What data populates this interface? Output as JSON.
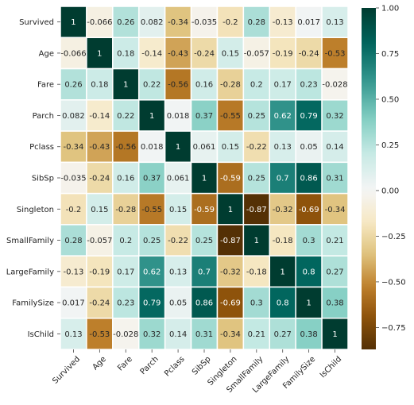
{
  "chart_data": {
    "type": "heatmap",
    "title": "",
    "labels": [
      "Survived",
      "Age",
      "Fare",
      "Parch",
      "Pclass",
      "SibSp",
      "Singleton",
      "SmallFamily",
      "LargeFamily",
      "FamilySize",
      "IsChild"
    ],
    "matrix": [
      [
        1,
        -0.066,
        0.26,
        0.082,
        -0.34,
        -0.035,
        -0.2,
        0.28,
        -0.13,
        0.017,
        0.13
      ],
      [
        -0.066,
        1,
        0.18,
        -0.14,
        -0.43,
        -0.24,
        0.15,
        -0.057,
        -0.19,
        -0.24,
        -0.53
      ],
      [
        0.26,
        0.18,
        1,
        0.22,
        -0.56,
        0.16,
        -0.28,
        0.2,
        0.17,
        0.23,
        -0.028
      ],
      [
        0.082,
        -0.14,
        0.22,
        1,
        0.018,
        0.37,
        -0.55,
        0.25,
        0.62,
        0.79,
        0.32
      ],
      [
        -0.34,
        -0.43,
        -0.56,
        0.018,
        1,
        0.061,
        0.15,
        -0.22,
        0.13,
        0.05,
        0.14
      ],
      [
        -0.035,
        -0.24,
        0.16,
        0.37,
        0.061,
        1,
        -0.59,
        0.25,
        0.7,
        0.86,
        0.31
      ],
      [
        -0.2,
        0.15,
        -0.28,
        -0.55,
        0.15,
        -0.59,
        1,
        -0.87,
        -0.32,
        -0.69,
        -0.34
      ],
      [
        0.28,
        -0.057,
        0.2,
        0.25,
        -0.22,
        0.25,
        -0.87,
        1,
        -0.18,
        0.3,
        0.21
      ],
      [
        -0.13,
        -0.19,
        0.17,
        0.62,
        0.13,
        0.7,
        -0.32,
        -0.18,
        1,
        0.8,
        0.27
      ],
      [
        0.017,
        -0.24,
        0.23,
        0.79,
        0.05,
        0.86,
        -0.69,
        0.3,
        0.8,
        1,
        0.38
      ],
      [
        0.13,
        -0.53,
        -0.028,
        0.32,
        0.14,
        0.31,
        -0.34,
        0.21,
        0.27,
        0.38,
        1
      ]
    ],
    "cell_labels": [
      [
        "1",
        "-0.066",
        "0.26",
        "0.082",
        "-0.34",
        "-0.035",
        "-0.2",
        "0.28",
        "-0.13",
        "0.017",
        "0.13"
      ],
      [
        "-0.066",
        "1",
        "0.18",
        "-0.14",
        "-0.43",
        "-0.24",
        "0.15",
        "-0.057",
        "-0.19",
        "-0.24",
        "-0.53"
      ],
      [
        "0.26",
        "0.18",
        "1",
        "0.22",
        "-0.56",
        "0.16",
        "-0.28",
        "0.2",
        "0.17",
        "0.23",
        "-0.028"
      ],
      [
        "0.082",
        "-0.14",
        "0.22",
        "1",
        "0.018",
        "0.37",
        "-0.55",
        "0.25",
        "0.62",
        "0.79",
        "0.32"
      ],
      [
        "-0.34",
        "-0.43",
        "-0.56",
        "0.018",
        "1",
        "0.061",
        "0.15",
        "-0.22",
        "0.13",
        "0.05",
        "0.14"
      ],
      [
        "-0.035",
        "-0.24",
        "0.16",
        "0.37",
        "0.061",
        "1",
        "-0.59",
        "0.25",
        "0.7",
        "0.86",
        "0.31"
      ],
      [
        "-0.2",
        "0.15",
        "-0.28",
        "-0.55",
        "0.15",
        "-0.59",
        "1",
        "-0.87",
        "-0.32",
        "-0.69",
        "-0.34"
      ],
      [
        "0.28",
        "-0.057",
        "0.2",
        "0.25",
        "-0.22",
        "0.25",
        "-0.87",
        "1",
        "-0.18",
        "0.3",
        "0.21"
      ],
      [
        "-0.13",
        "-0.19",
        "0.17",
        "0.62",
        "0.13",
        "0.7",
        "-0.32",
        "-0.18",
        "1",
        "0.8",
        "0.27"
      ],
      [
        "0.017",
        "-0.24",
        "0.23",
        "0.79",
        "0.05",
        "0.86",
        "-0.69",
        "0.3",
        "0.8",
        "1",
        "0.38"
      ],
      [
        "0.13",
        "-0.53",
        "-0.028",
        "0.32",
        "0.14",
        "0.31",
        "-0.34",
        "0.21",
        "0.27",
        "0.38",
        "1"
      ]
    ],
    "colormap": "BrBG",
    "color_range": [
      -0.87,
      1.0
    ],
    "colorbar": {
      "ticks": [
        1.0,
        0.75,
        0.5,
        0.25,
        0.0,
        -0.25,
        -0.5,
        -0.75
      ],
      "tick_labels": [
        "1.00",
        "0.75",
        "0.50",
        "0.25",
        "0.00",
        "−0.25",
        "−0.50",
        "−0.75"
      ]
    },
    "annotations": true,
    "xlabel": "",
    "ylabel": ""
  }
}
